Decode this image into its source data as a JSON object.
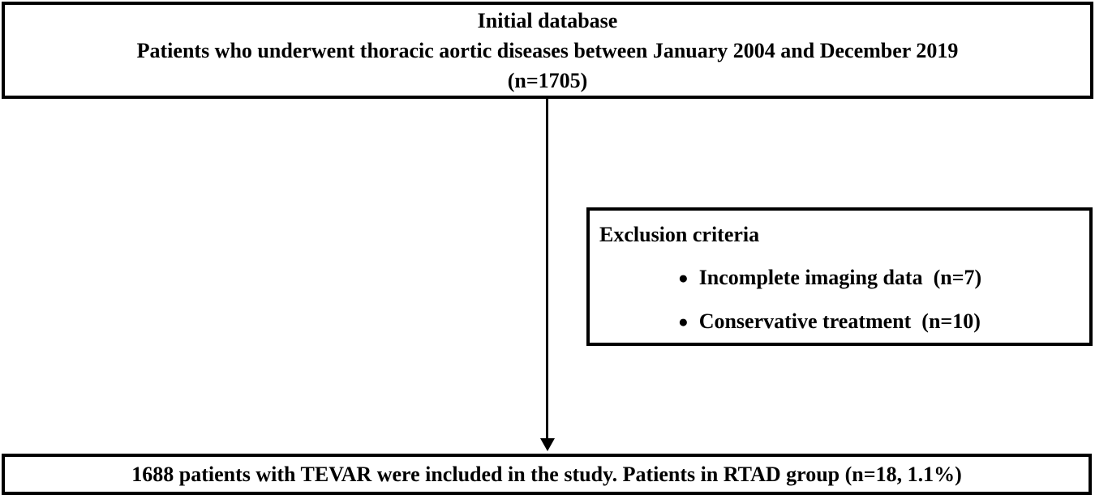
{
  "diagram": {
    "top_box": {
      "line1": "Initial database",
      "line2": "Patients who underwent thoracic aortic diseases between January 2004 and December 2019",
      "line3": "(n=1705)"
    },
    "flow_arrow": {
      "icon": "down-arrow-icon",
      "direction": "down"
    },
    "exclusion_box": {
      "title": "Exclusion criteria",
      "items": [
        {
          "bullet": "●",
          "label": "Incomplete imaging data  (n=7)"
        },
        {
          "bullet": "●",
          "label": "Conservative treatment  (n=10)"
        }
      ]
    },
    "bottom_box": {
      "text": "1688 patients with TEVAR were included in the study. Patients in RTAD group (n=18, 1.1%)"
    },
    "colors": {
      "border": "#000000",
      "text": "#000000",
      "background": "#ffffff"
    }
  }
}
